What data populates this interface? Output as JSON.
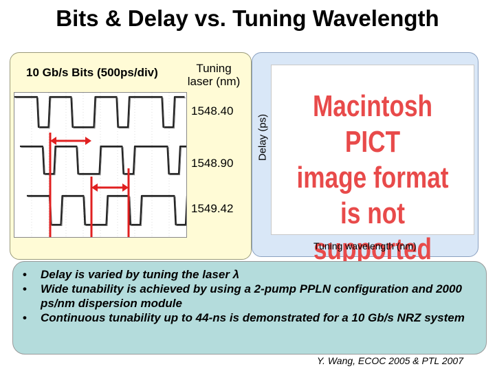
{
  "slide": {
    "title": "Bits & Delay vs. Tuning Wavelength"
  },
  "left_panel": {
    "bits_label": "10 Gb/s Bits (500ps/div)",
    "tuning_label": "Tuning laser (nm)",
    "wavelengths": [
      "1548.40",
      "1548.90",
      "1549.42"
    ]
  },
  "right_panel": {
    "delay_axis_label": "Delay (ps)",
    "placeholder_lines": [
      "Macintosh PICT",
      "image format",
      "is not supported"
    ],
    "x_axis_label": "Tuning wavelength (nm)"
  },
  "bullets": [
    "Delay is varied by tuning the laser λ",
    "Wide tunability is achieved by using a 2-pump PPLN configuration and 2000 ps/nm dispersion module",
    "Continuous tunability up to 44-ns is demonstrated for a 10 Gb/s NRZ system"
  ],
  "citation": "Y. Wang, ECOC 2005 & PTL 2007",
  "colors": {
    "left_panel_bg": "#fffbd6",
    "right_panel_bg": "#d9e7f7",
    "bullet_box_bg": "#b4dcdc",
    "marker_red": "#e02020",
    "pict_text_red": "#e84a4a"
  }
}
